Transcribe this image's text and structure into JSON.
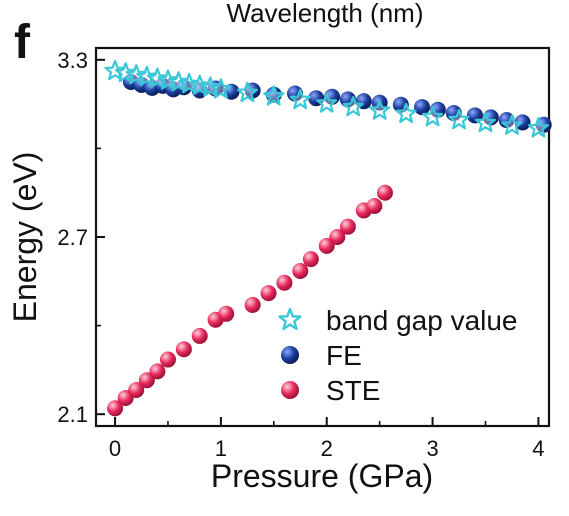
{
  "top_label": "Wavelength (nm)",
  "panel_label": "f",
  "chart_data": {
    "type": "scatter",
    "title": "",
    "xlabel": "Pressure (GPa)",
    "ylabel": "Energy (eV)",
    "xlim": [
      -0.18,
      4.1
    ],
    "ylim": [
      2.06,
      3.34
    ],
    "xticks": [
      0,
      1,
      2,
      3,
      4
    ],
    "yticks": [
      2.1,
      2.7,
      3.3
    ],
    "yticks_labels": [
      "2.1",
      "2.7",
      "3.3"
    ],
    "grid": false,
    "legend_position": "bottom-right",
    "series": [
      {
        "name": "band gap value",
        "marker": "star",
        "color": "#38c8d8",
        "x": [
          0.0,
          0.1,
          0.2,
          0.3,
          0.4,
          0.5,
          0.6,
          0.7,
          0.8,
          0.9,
          1.0,
          1.25,
          1.5,
          1.75,
          2.0,
          2.25,
          2.5,
          2.75,
          3.0,
          3.25,
          3.5,
          3.75,
          4.0
        ],
        "y": [
          3.262,
          3.255,
          3.248,
          3.242,
          3.236,
          3.23,
          3.224,
          3.218,
          3.212,
          3.206,
          3.2,
          3.188,
          3.176,
          3.164,
          3.152,
          3.14,
          3.128,
          3.117,
          3.106,
          3.096,
          3.086,
          3.077,
          3.068
        ]
      },
      {
        "name": "FE",
        "marker": "circle",
        "color": "#1c3f9e",
        "x": [
          0.15,
          0.25,
          0.35,
          0.45,
          0.55,
          0.65,
          0.8,
          0.95,
          1.1,
          1.3,
          1.5,
          1.7,
          1.9,
          2.05,
          2.2,
          2.35,
          2.5,
          2.7,
          2.9,
          3.05,
          3.2,
          3.4,
          3.55,
          3.7,
          3.85,
          4.05
        ],
        "y": [
          3.225,
          3.215,
          3.205,
          3.212,
          3.2,
          3.207,
          3.196,
          3.203,
          3.192,
          3.196,
          3.182,
          3.186,
          3.17,
          3.175,
          3.166,
          3.16,
          3.155,
          3.148,
          3.14,
          3.131,
          3.12,
          3.112,
          3.105,
          3.096,
          3.088,
          3.08
        ]
      },
      {
        "name": "STE",
        "marker": "circle",
        "color": "#e82a5e",
        "x": [
          0.0,
          0.1,
          0.2,
          0.3,
          0.4,
          0.5,
          0.65,
          0.8,
          0.95,
          1.05,
          1.3,
          1.45,
          1.6,
          1.75,
          1.85,
          2.0,
          2.1,
          2.2,
          2.35,
          2.45,
          2.55
        ],
        "y": [
          2.12,
          2.155,
          2.182,
          2.215,
          2.245,
          2.285,
          2.32,
          2.365,
          2.42,
          2.44,
          2.47,
          2.51,
          2.545,
          2.585,
          2.625,
          2.67,
          2.7,
          2.735,
          2.79,
          2.805,
          2.85
        ]
      }
    ]
  }
}
